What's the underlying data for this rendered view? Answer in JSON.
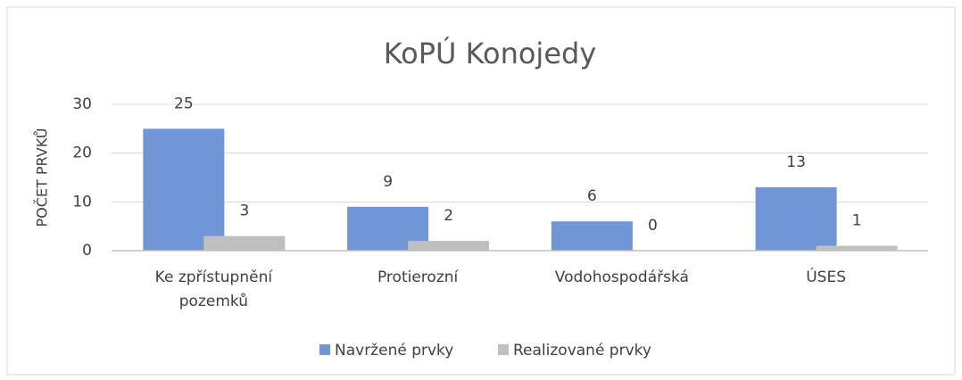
{
  "chart_data": {
    "type": "bar",
    "title": "KoPÚ Konojedy",
    "y_label": "POČET PRVKŮ",
    "categories": [
      "Ke zpřístupnění pozemků",
      "Protierozní",
      "Vodohospodářská",
      "ÚSES"
    ],
    "series": [
      {
        "name": "Navržené prvky",
        "color": "#7096d6",
        "values": [
          25,
          9,
          6,
          13
        ]
      },
      {
        "name": "Realizované prvky",
        "color": "#bfbfbf",
        "values": [
          3,
          2,
          0,
          1
        ]
      }
    ],
    "ylim": [
      0,
      30
    ],
    "yticks": [
      0,
      10,
      20,
      30
    ],
    "grid": true,
    "legend": "bottom"
  }
}
